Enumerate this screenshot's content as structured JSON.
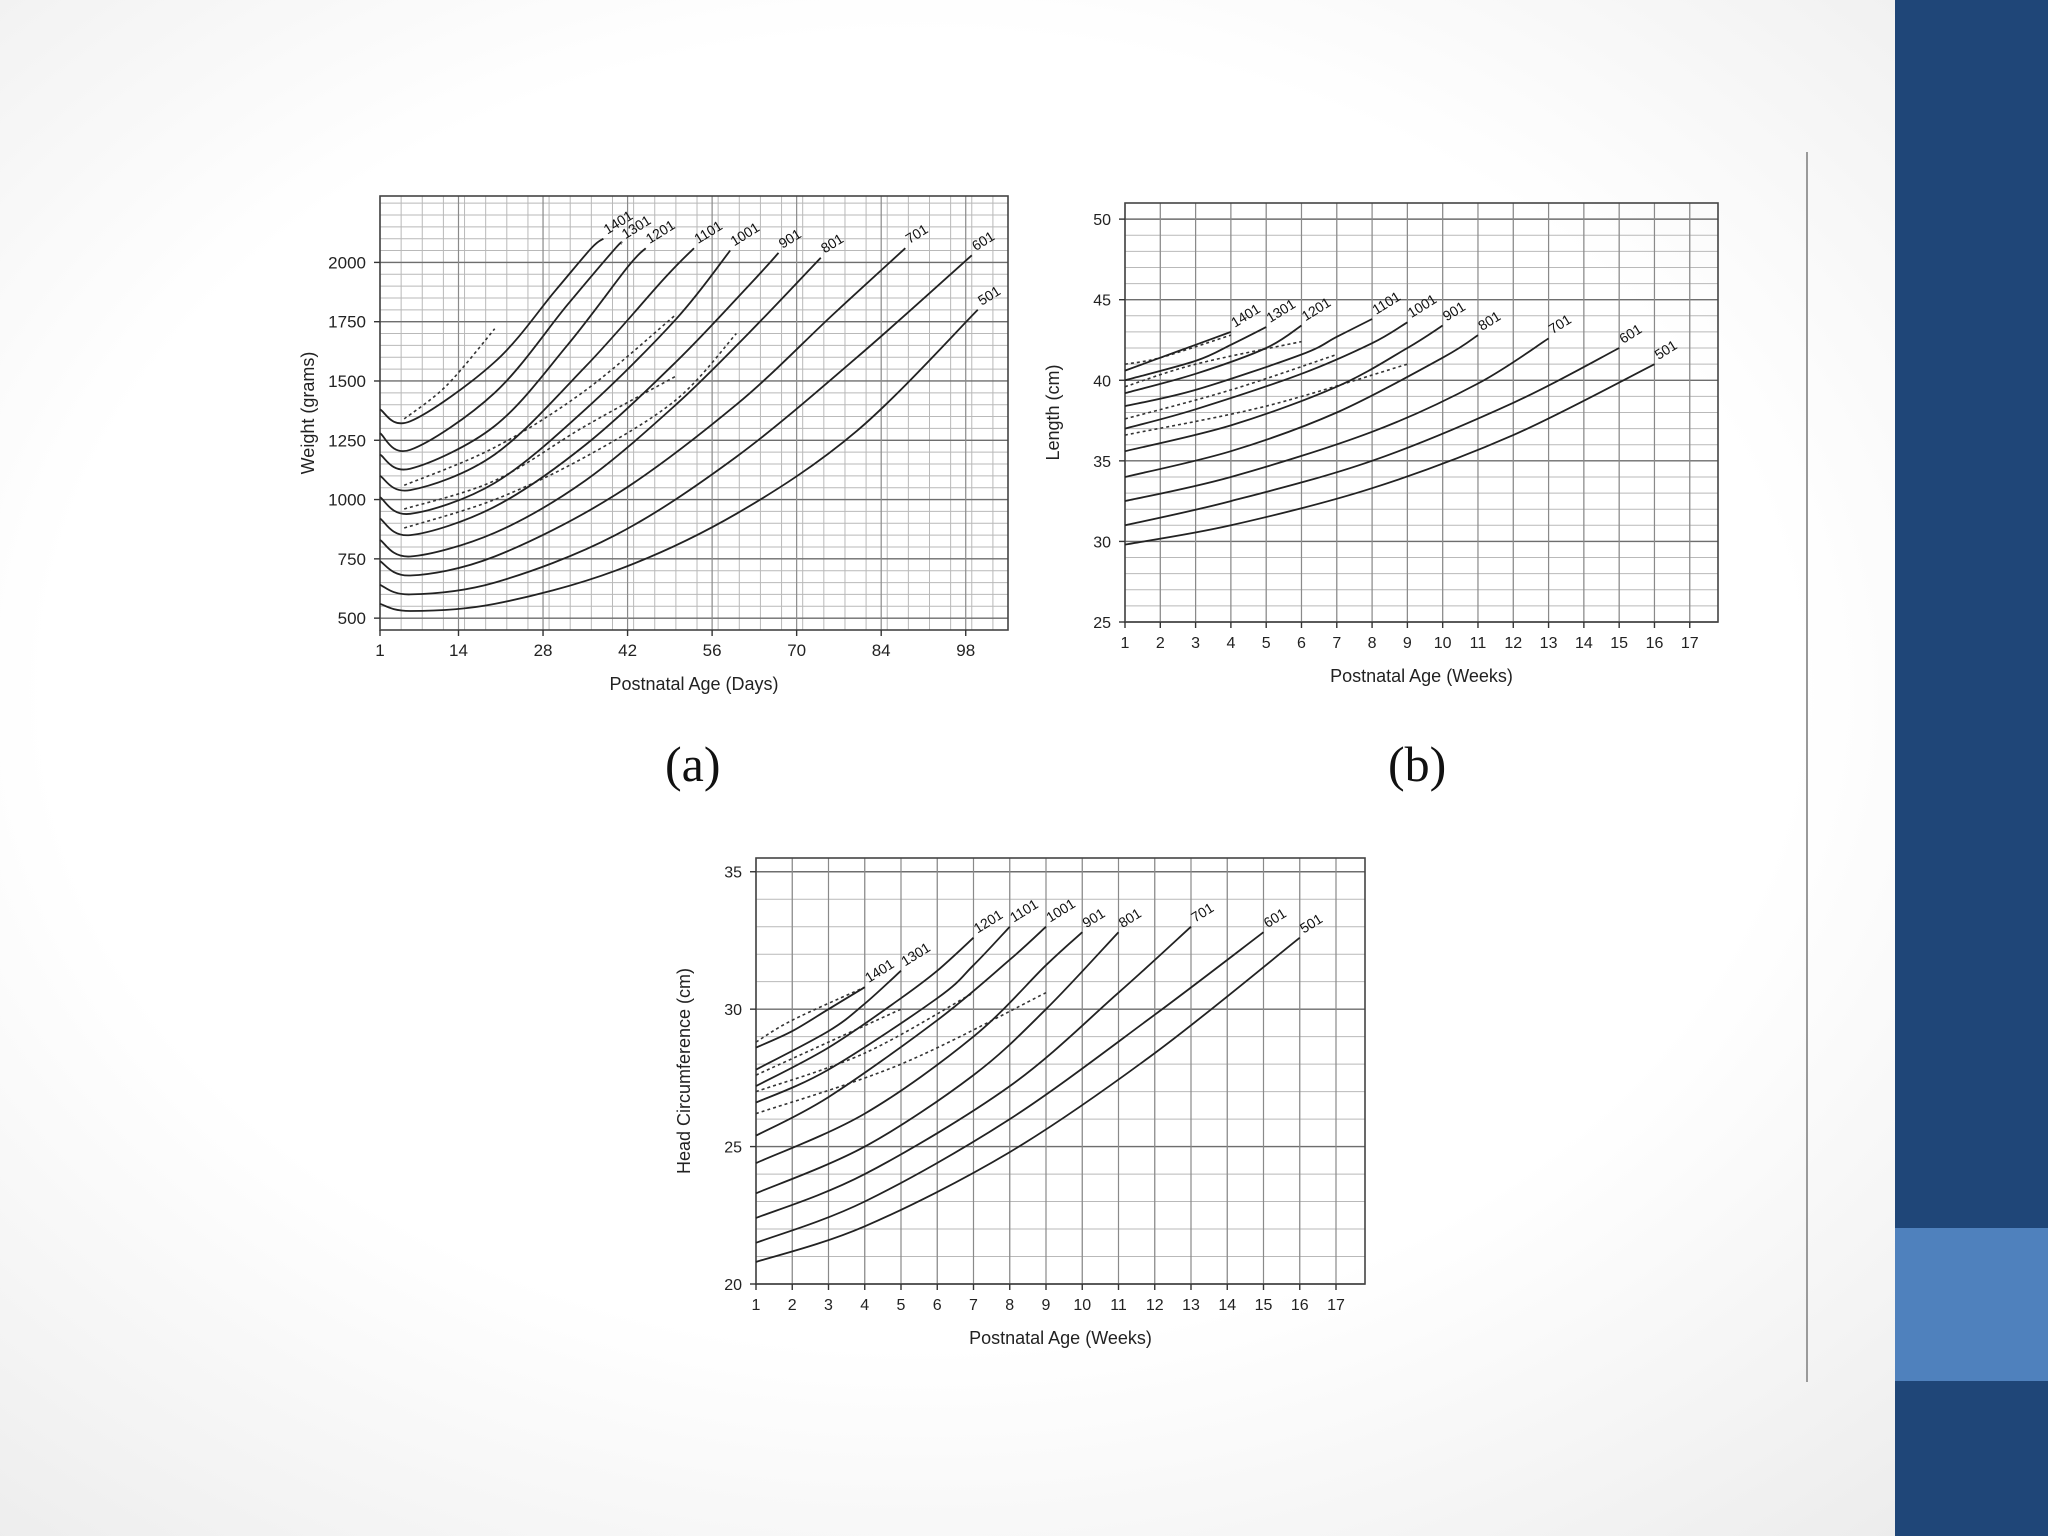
{
  "slide": {
    "sidebar_color": "#1f4678",
    "accent_color": "#4f81bd"
  },
  "chart_data": [
    {
      "panel_label": "(a)",
      "type": "line",
      "ylabel": "Weight (grams)",
      "xlabel": "Postnatal Age (Days)",
      "xlim": [
        1,
        105
      ],
      "ylim": [
        450,
        2280
      ],
      "x_ticks": [
        1,
        14,
        28,
        42,
        56,
        70,
        84,
        98
      ],
      "y_ticks": [
        500,
        750,
        1000,
        1250,
        1500,
        1750,
        2000
      ],
      "grid": true,
      "series": [
        {
          "name": "501",
          "x": [
            1,
            6,
            20,
            40,
            60,
            80,
            100
          ],
          "y": [
            560,
            530,
            560,
            700,
            940,
            1290,
            1800
          ]
        },
        {
          "name": "601",
          "x": [
            1,
            6,
            20,
            40,
            60,
            80,
            99
          ],
          "y": [
            640,
            600,
            650,
            850,
            1180,
            1600,
            2030
          ]
        },
        {
          "name": "701",
          "x": [
            1,
            6,
            20,
            40,
            60,
            76,
            88
          ],
          "y": [
            740,
            680,
            760,
            1020,
            1400,
            1780,
            2060
          ]
        },
        {
          "name": "801",
          "x": [
            1,
            6,
            20,
            35,
            50,
            62,
            74
          ],
          "y": [
            830,
            760,
            860,
            1080,
            1400,
            1700,
            2020
          ]
        },
        {
          "name": "901",
          "x": [
            1,
            6,
            20,
            35,
            50,
            62,
            67
          ],
          "y": [
            920,
            850,
            970,
            1230,
            1580,
            1900,
            2040
          ]
        },
        {
          "name": "1001",
          "x": [
            1,
            6,
            20,
            35,
            50,
            59
          ],
          "y": [
            1010,
            940,
            1070,
            1380,
            1760,
            2050
          ]
        },
        {
          "name": "1101",
          "x": [
            1,
            6,
            20,
            35,
            48,
            53
          ],
          "y": [
            1100,
            1040,
            1190,
            1560,
            1930,
            2060
          ]
        },
        {
          "name": "1201",
          "x": [
            1,
            6,
            20,
            32,
            42,
            45
          ],
          "y": [
            1190,
            1130,
            1310,
            1650,
            1980,
            2060
          ]
        },
        {
          "name": "1301",
          "x": [
            1,
            6,
            20,
            32,
            40,
            41
          ],
          "y": [
            1280,
            1210,
            1450,
            1820,
            2060,
            2080
          ]
        },
        {
          "name": "1401",
          "x": [
            1,
            6,
            20,
            30,
            36,
            38
          ],
          "y": [
            1380,
            1330,
            1580,
            1880,
            2060,
            2100
          ]
        }
      ],
      "reference_series": [
        {
          "x": [
            5,
            20,
            35,
            50,
            60
          ],
          "y": [
            880,
            1000,
            1180,
            1420,
            1700
          ]
        },
        {
          "x": [
            5,
            20,
            35,
            50
          ],
          "y": [
            960,
            1080,
            1310,
            1520
          ]
        },
        {
          "x": [
            5,
            20,
            35,
            50
          ],
          "y": [
            1060,
            1220,
            1460,
            1780
          ]
        },
        {
          "x": [
            5,
            12,
            20
          ],
          "y": [
            1340,
            1480,
            1720
          ]
        }
      ]
    },
    {
      "panel_label": "(b)",
      "type": "line",
      "ylabel": "Length (cm)",
      "xlabel": "Postnatal Age (Weeks)",
      "xlim": [
        1,
        17.8
      ],
      "ylim": [
        25,
        51
      ],
      "x_ticks": [
        1,
        2,
        3,
        4,
        5,
        6,
        7,
        8,
        9,
        10,
        11,
        12,
        13,
        14,
        15,
        16,
        17
      ],
      "y_ticks": [
        25,
        30,
        35,
        40,
        45,
        50
      ],
      "grid": true,
      "series": [
        {
          "name": "501",
          "x": [
            1,
            4,
            8,
            12,
            16
          ],
          "y": [
            29.8,
            31.0,
            33.3,
            36.6,
            41.0
          ]
        },
        {
          "name": "601",
          "x": [
            1,
            4,
            8,
            12,
            15
          ],
          "y": [
            31.0,
            32.5,
            35.0,
            38.6,
            42.0
          ]
        },
        {
          "name": "701",
          "x": [
            1,
            4,
            8,
            11,
            13
          ],
          "y": [
            32.5,
            34.0,
            36.8,
            39.8,
            42.6
          ]
        },
        {
          "name": "801",
          "x": [
            1,
            4,
            7,
            10,
            11
          ],
          "y": [
            34.0,
            35.6,
            38.0,
            41.4,
            42.8
          ]
        },
        {
          "name": "901",
          "x": [
            1,
            4,
            7,
            9,
            10
          ],
          "y": [
            35.6,
            37.2,
            39.6,
            42.0,
            43.4
          ]
        },
        {
          "name": "1001",
          "x": [
            1,
            3,
            6,
            8,
            9
          ],
          "y": [
            37.0,
            38.2,
            40.4,
            42.3,
            43.6
          ]
        },
        {
          "name": "1101",
          "x": [
            1,
            3,
            6,
            7,
            8
          ],
          "y": [
            38.4,
            39.4,
            41.6,
            42.7,
            43.8
          ]
        },
        {
          "name": "1201",
          "x": [
            1,
            3,
            5,
            6
          ],
          "y": [
            39.2,
            40.4,
            42.0,
            43.4
          ]
        },
        {
          "name": "1301",
          "x": [
            1,
            3,
            4,
            5
          ],
          "y": [
            40.0,
            41.2,
            42.2,
            43.3
          ]
        },
        {
          "name": "1401",
          "x": [
            1,
            2,
            3,
            4
          ],
          "y": [
            40.6,
            41.4,
            42.2,
            43.0
          ]
        }
      ],
      "reference_series": [
        {
          "x": [
            1,
            5,
            9
          ],
          "y": [
            36.6,
            38.4,
            41.0
          ]
        },
        {
          "x": [
            1,
            4,
            7
          ],
          "y": [
            37.6,
            39.4,
            41.6
          ]
        },
        {
          "x": [
            1,
            3,
            6
          ],
          "y": [
            39.6,
            41.0,
            42.4
          ]
        },
        {
          "x": [
            1,
            2,
            4
          ],
          "y": [
            41.0,
            41.4,
            42.8
          ]
        }
      ]
    },
    {
      "panel_label": "",
      "type": "line",
      "ylabel": "Head Circumference (cm)",
      "xlabel": "Postnatal Age (Weeks)",
      "xlim": [
        1,
        17.8
      ],
      "ylim": [
        20,
        35.5
      ],
      "x_ticks": [
        1,
        2,
        3,
        4,
        5,
        6,
        7,
        8,
        9,
        10,
        11,
        12,
        13,
        14,
        15,
        16,
        17
      ],
      "y_ticks": [
        20,
        25,
        30,
        35
      ],
      "grid": true,
      "series": [
        {
          "name": "501",
          "x": [
            1,
            4,
            8,
            12,
            16
          ],
          "y": [
            20.8,
            22.1,
            24.8,
            28.4,
            32.6
          ]
        },
        {
          "name": "601",
          "x": [
            1,
            4,
            8,
            12,
            15
          ],
          "y": [
            21.5,
            23.0,
            26.0,
            29.8,
            32.8
          ]
        },
        {
          "name": "701",
          "x": [
            1,
            4,
            8,
            11,
            13
          ],
          "y": [
            22.4,
            24.0,
            27.2,
            30.6,
            33.0
          ]
        },
        {
          "name": "801",
          "x": [
            1,
            4,
            7,
            9,
            11
          ],
          "y": [
            23.3,
            25.0,
            27.6,
            30.0,
            32.8
          ]
        },
        {
          "name": "901",
          "x": [
            1,
            4,
            7,
            9,
            10
          ],
          "y": [
            24.4,
            26.2,
            29.0,
            31.6,
            32.8
          ]
        },
        {
          "name": "1001",
          "x": [
            1,
            3,
            6,
            8,
            9
          ],
          "y": [
            25.4,
            26.8,
            29.6,
            31.8,
            33.0
          ]
        },
        {
          "name": "1101",
          "x": [
            1,
            3,
            6,
            7,
            8
          ],
          "y": [
            26.6,
            27.8,
            30.4,
            31.6,
            33.0
          ]
        },
        {
          "name": "1201",
          "x": [
            1,
            3,
            5,
            6,
            7
          ],
          "y": [
            27.2,
            28.6,
            30.4,
            31.4,
            32.6
          ]
        },
        {
          "name": "1301",
          "x": [
            1,
            3,
            4,
            5
          ],
          "y": [
            27.8,
            29.2,
            30.2,
            31.4
          ]
        },
        {
          "name": "1401",
          "x": [
            1,
            2,
            3,
            4
          ],
          "y": [
            28.6,
            29.2,
            30.0,
            30.8
          ]
        }
      ],
      "reference_series": [
        {
          "x": [
            1,
            5,
            9
          ],
          "y": [
            26.2,
            28.0,
            30.6
          ]
        },
        {
          "x": [
            1,
            4,
            7
          ],
          "y": [
            27.0,
            28.4,
            30.6
          ]
        },
        {
          "x": [
            1,
            3,
            5
          ],
          "y": [
            27.6,
            28.8,
            30.0
          ]
        },
        {
          "x": [
            1,
            2,
            4
          ],
          "y": [
            28.8,
            29.6,
            30.8
          ]
        }
      ]
    }
  ]
}
